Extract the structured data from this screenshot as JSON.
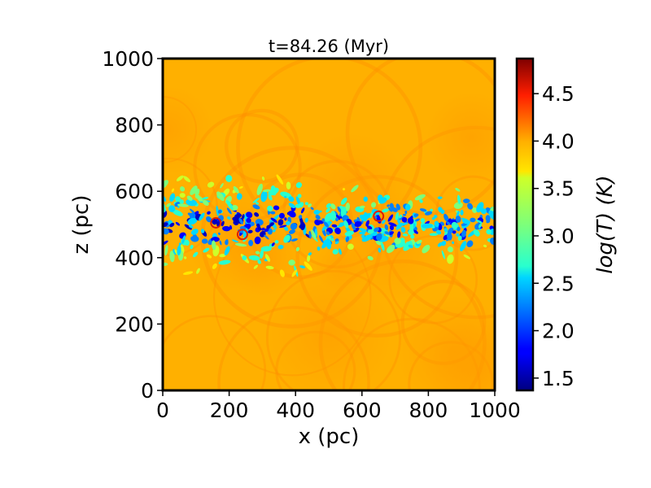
{
  "chart_data": {
    "type": "heatmap",
    "title": "t=84.26 (Myr)",
    "xlabel": "x (pc)",
    "ylabel": "z (pc)",
    "xlim": [
      0,
      1000
    ],
    "ylim": [
      0,
      1000
    ],
    "xticks": [
      0,
      200,
      400,
      600,
      800,
      1000
    ],
    "yticks": [
      0,
      200,
      400,
      600,
      800,
      1000
    ],
    "colorbar": {
      "label": "log(T) (K)",
      "range": [
        1.37,
        4.87
      ],
      "ticks": [
        1.5,
        2.0,
        2.5,
        3.0,
        3.5,
        4.0,
        4.5
      ],
      "tick_labels": [
        "1.5",
        "2.0",
        "2.5",
        "3.0",
        "3.5",
        "4.0",
        "4.5"
      ],
      "colormap": "jet"
    },
    "field": {
      "background_logT": 4.1,
      "background_color": "#ffb000",
      "cold_layer_z_range": [
        330,
        640
      ],
      "cold_layer_x_range": [
        0,
        1000
      ]
    },
    "colors": {
      "hot": "#ff8c00",
      "warm": "#ffb000",
      "cold": "#00d8ff",
      "coldest": "#0000c0"
    }
  }
}
